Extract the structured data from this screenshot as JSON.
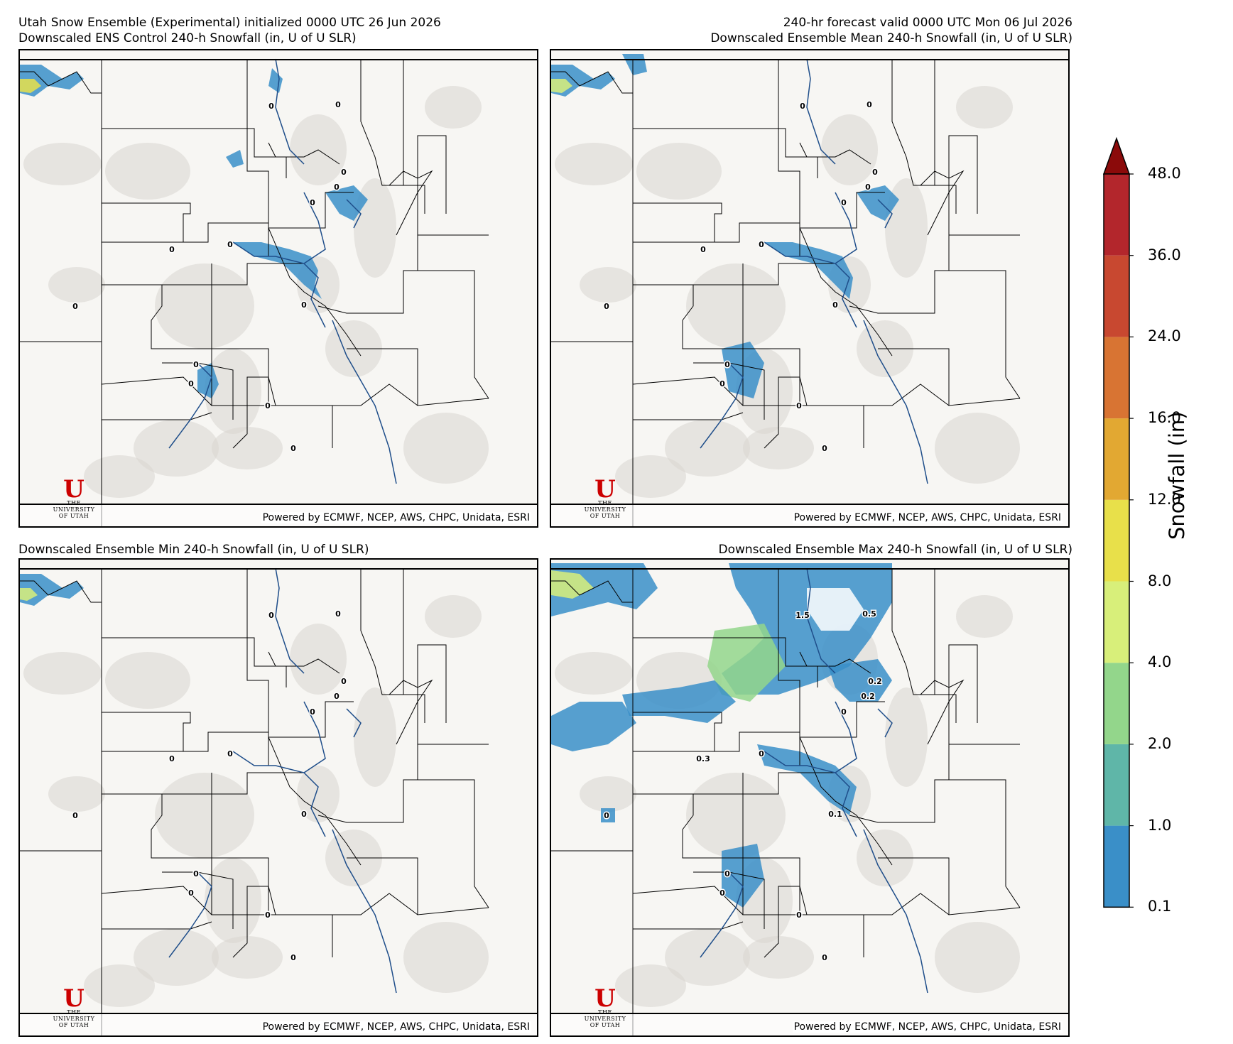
{
  "header": {
    "left_line1": "Utah Snow Ensemble (Experimental) initialized 0000 UTC 26 Jun 2026",
    "left_line2": "Downscaled ENS Control 240-h Snowfall (in, U of U SLR)",
    "right_line1": "240-hr forecast valid 0000 UTC Mon 06 Jul 2026",
    "right_line2": "Downscaled Ensemble Mean 240-h Snowfall (in, U of U SLR)",
    "bottom_left_title": "Downscaled Ensemble Min 240-h Snowfall (in, U of U SLR)",
    "bottom_right_title": "Downscaled Ensemble Max 240-h Snowfall (in, U of U SLR)"
  },
  "credit": "Powered by ECMWF, NCEP, AWS, CHPC, Unidata, ESRI",
  "logo": {
    "line1": "THE",
    "line2": "UNIVERSITY",
    "line3": "OF UTAH",
    "mark": "U"
  },
  "colorbar": {
    "title": "Snowfall (in)",
    "levels": [
      "0.1",
      "1.0",
      "2.0",
      "4.0",
      "8.0",
      "12.0",
      "16.0",
      "24.0",
      "36.0",
      "48.0"
    ],
    "colors": [
      "#3a8fc8",
      "#5fb6a8",
      "#93d68b",
      "#d8ef7a",
      "#e8e04a",
      "#e2a832",
      "#d87433",
      "#c84830",
      "#b3262c"
    ],
    "extend_color": "#8b0a0a"
  },
  "panels": {
    "control": {
      "labels": [
        "0",
        "0",
        "0",
        "0",
        "0",
        "0",
        "0",
        "0",
        "0",
        "0",
        "0",
        "0",
        "0"
      ]
    },
    "mean": {
      "labels": [
        "0",
        "0",
        "0",
        "0",
        "0",
        "0",
        "0",
        "0",
        "0",
        "0",
        "0",
        "0",
        "0"
      ]
    },
    "min": {
      "labels": [
        "0",
        "0",
        "0",
        "0",
        "0",
        "0",
        "0",
        "0",
        "0",
        "0",
        "0",
        "0",
        "0"
      ]
    },
    "max": {
      "labels": [
        "1.5",
        "0.5",
        "0.2",
        "0.2",
        "0",
        "0.3",
        "0",
        "0",
        "0.1",
        "0",
        "0",
        "0",
        "0"
      ]
    }
  }
}
